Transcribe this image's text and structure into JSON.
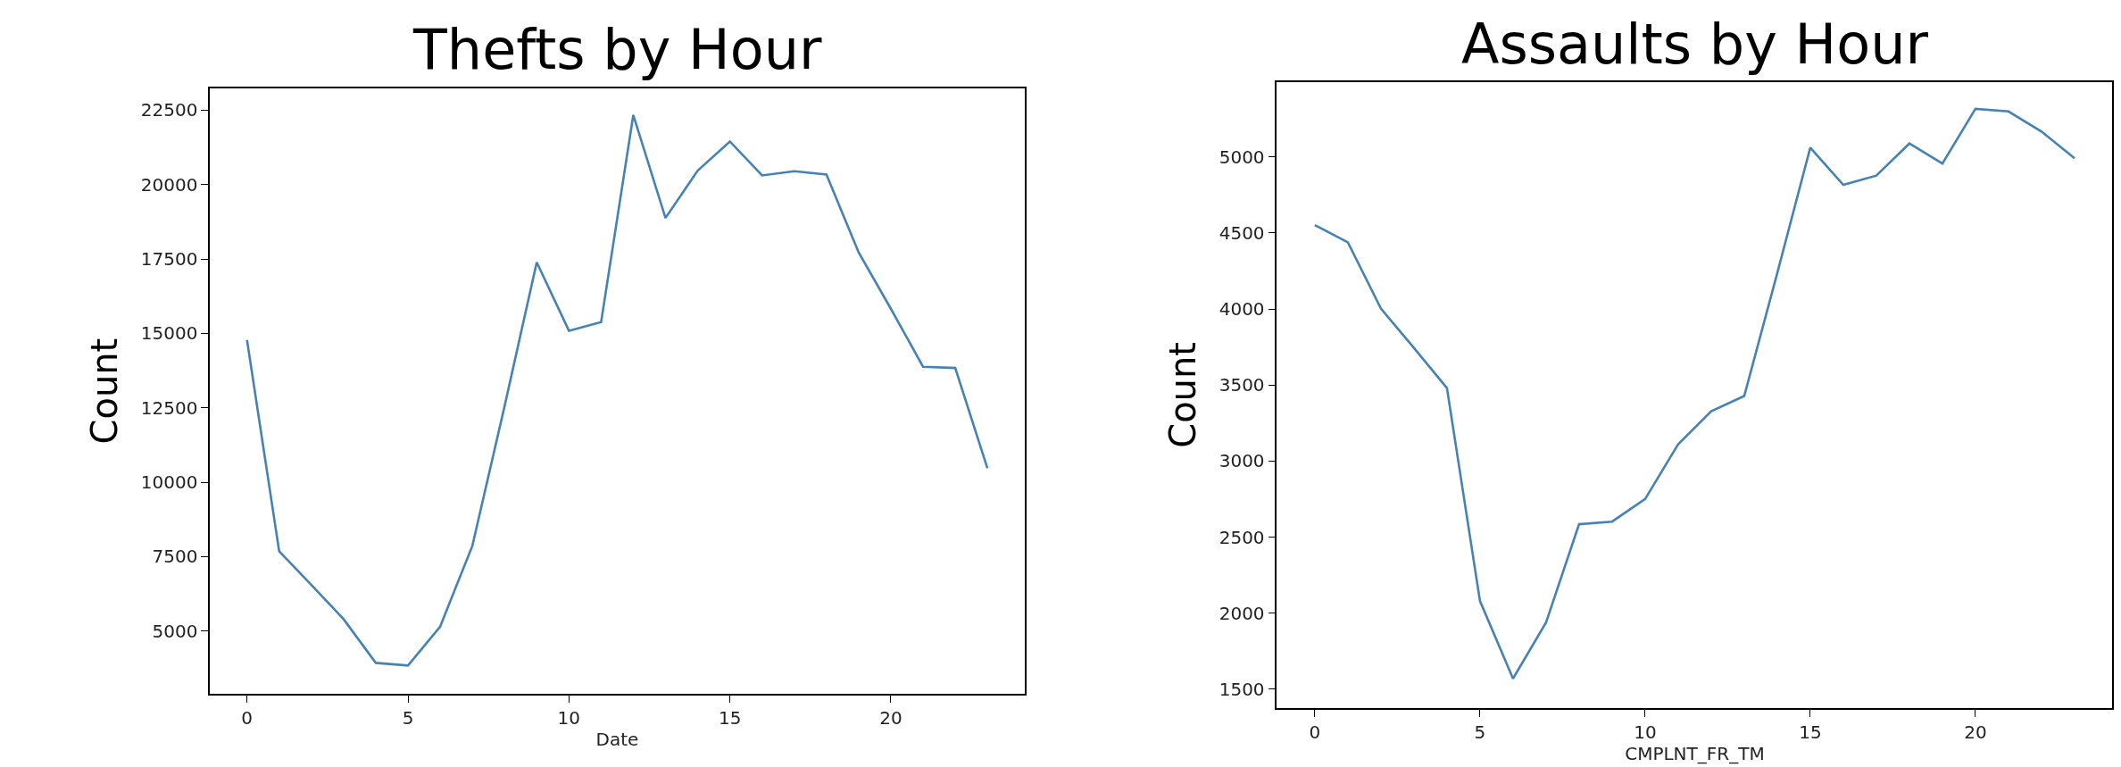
{
  "chart_data": [
    {
      "type": "line",
      "title": "Thefts by Hour",
      "xlabel": "Date",
      "ylabel": "Count",
      "x": [
        0,
        1,
        2,
        3,
        4,
        5,
        6,
        7,
        8,
        9,
        10,
        11,
        12,
        13,
        14,
        15,
        16,
        17,
        18,
        19,
        20,
        21,
        22,
        23
      ],
      "series": [
        {
          "color": "#4682b4",
          "values": [
            14780,
            7680,
            6550,
            5400,
            3930,
            3840,
            5150,
            7860,
            12550,
            17390,
            15090,
            15380,
            22340,
            18880,
            20470,
            21450,
            20310,
            20450,
            20340,
            17720,
            15830,
            13880,
            13840,
            10470
          ]
        }
      ],
      "xlim": [
        -1.15,
        24.15
      ],
      "xticks": [
        0,
        5,
        10,
        15,
        20
      ],
      "ylim": [
        2880,
        23240
      ],
      "yticks": [
        5000,
        7500,
        10000,
        12500,
        15000,
        17500,
        20000,
        22500
      ],
      "marker": "none",
      "line_style": "solid"
    },
    {
      "type": "line",
      "title": "Assaults by Hour",
      "xlabel": "CMPLNT_FR_TM",
      "ylabel": "Count",
      "x": [
        0,
        1,
        2,
        3,
        4,
        5,
        6,
        7,
        8,
        9,
        10,
        11,
        12,
        13,
        14,
        15,
        16,
        17,
        18,
        19,
        20,
        21,
        22,
        23
      ],
      "series": [
        {
          "color": "#4682b4",
          "values": [
            4552,
            4438,
            4003,
            3744,
            3480,
            2080,
            1570,
            1939,
            2585,
            2602,
            2751,
            3111,
            3327,
            3428,
            4236,
            5061,
            4816,
            4877,
            5088,
            4956,
            5316,
            5299,
            5167,
            4991
          ]
        }
      ],
      "xlim": [
        -1.15,
        24.15
      ],
      "xticks": [
        0,
        5,
        10,
        15,
        20
      ],
      "ylim": [
        1377,
        5492
      ],
      "yticks": [
        1500,
        2000,
        2500,
        3000,
        3500,
        4000,
        4500,
        5000
      ],
      "marker": "none",
      "line_style": "solid"
    }
  ]
}
